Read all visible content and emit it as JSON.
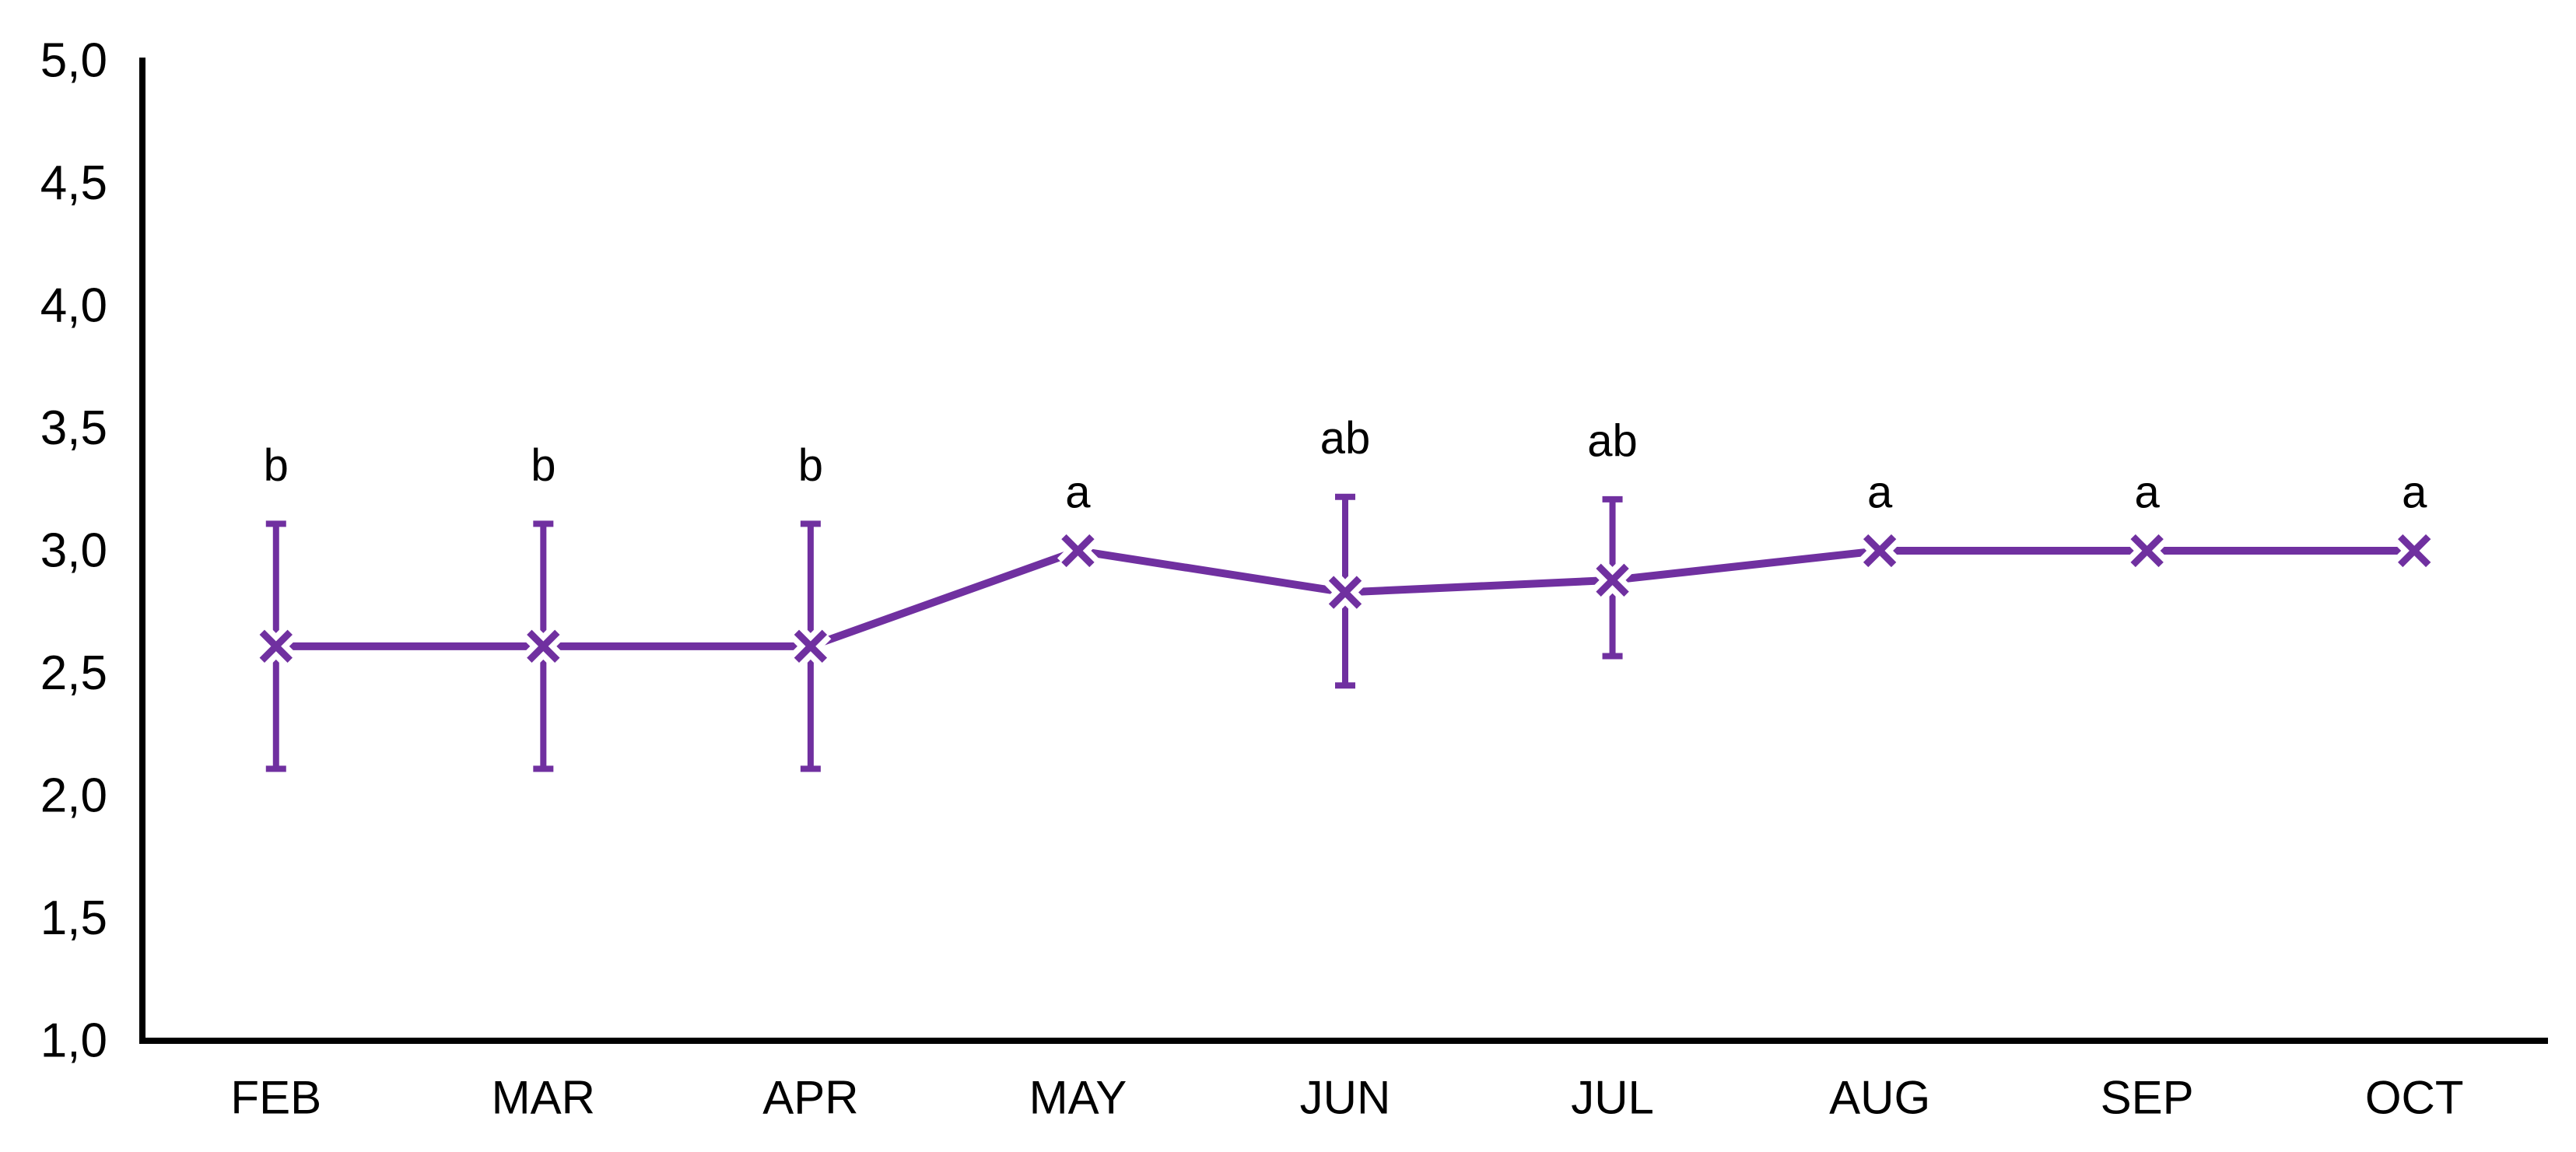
{
  "chart_data": {
    "type": "line",
    "title": "",
    "xlabel": "",
    "ylabel": "",
    "categories": [
      "FEB",
      "MAR",
      "APR",
      "MAY",
      "JUN",
      "JUL",
      "AUG",
      "SEP",
      "OCT"
    ],
    "values": [
      2.61,
      2.61,
      2.61,
      3.0,
      2.83,
      2.88,
      3.0,
      3.0,
      3.0
    ],
    "error_low": [
      2.11,
      2.11,
      2.11,
      null,
      2.45,
      2.57,
      null,
      null,
      null
    ],
    "error_high": [
      3.11,
      3.11,
      3.11,
      null,
      3.22,
      3.21,
      null,
      null,
      null
    ],
    "point_labels": [
      "b",
      "b",
      "b",
      "a",
      "ab",
      "ab",
      "a",
      "a",
      "a"
    ],
    "ylim": [
      1.0,
      5.0
    ],
    "ytick_step": 0.5,
    "ytick_labels_top_down": [
      "5,0",
      "4,5",
      "4,0",
      "3,5",
      "3,0",
      "2,5",
      "2,0",
      "1,5",
      "1,0"
    ],
    "decimal_separator": ",",
    "grid": false,
    "legend": "none",
    "marker": "x",
    "line_color": "#7030A0",
    "axis_color": "#000000",
    "text_color": "#000000",
    "background": "#FFFFFF"
  }
}
